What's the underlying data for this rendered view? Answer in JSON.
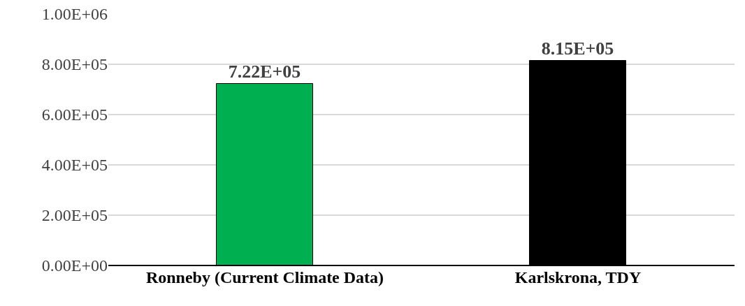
{
  "chart_data": {
    "type": "bar",
    "categories": [
      "Ronneby (Current Climate Data)",
      "Karlskrona, TDY"
    ],
    "values": [
      722000,
      815000
    ],
    "colors": [
      "#00b050",
      "#000000"
    ],
    "value_labels": [
      "7.22E+05",
      "8.15E+05"
    ],
    "ylim": [
      0,
      1000000
    ],
    "yticks": [
      {
        "value": 0,
        "label": "0.00E+00"
      },
      {
        "value": 200000,
        "label": "2.00E+05"
      },
      {
        "value": 400000,
        "label": "4.00E+05"
      },
      {
        "value": 600000,
        "label": "6.00E+05"
      },
      {
        "value": 800000,
        "label": "8.00E+05"
      },
      {
        "value": 1000000,
        "label": "1.00E+06"
      }
    ],
    "grid": "y"
  }
}
